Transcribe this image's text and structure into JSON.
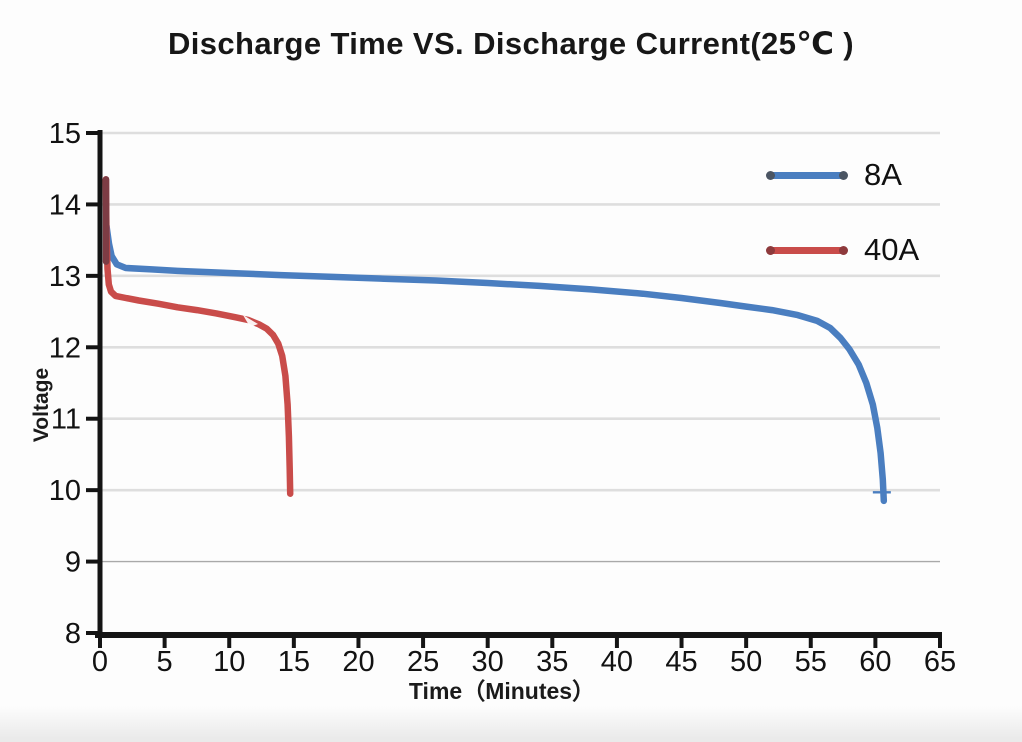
{
  "title": "Discharge Time VS. Discharge Current(25℃ )",
  "axes": {
    "x_label": "Time（Minutes）",
    "y_label": "Voltage"
  },
  "legend": {
    "items": [
      {
        "label": "8A",
        "color": "#4a7ec0",
        "cap_color": "#4b5563"
      },
      {
        "label": "40A",
        "color": "#c94c4a",
        "cap_color": "#8e3a3c"
      }
    ]
  },
  "colors": {
    "axis": "#141414",
    "grid_major": "#dedede",
    "grid_minor": "#a9a9a9",
    "tick_text": "#121212",
    "spike_overlay": "#7d3c44",
    "series_8a": "#4a7ec0",
    "series_40a": "#c94c4a"
  },
  "chart_data": {
    "type": "line",
    "title": "Discharge Time VS. Discharge Current(25℃ )",
    "xlabel": "Time（Minutes）",
    "ylabel": "Voltage",
    "xlim": [
      0,
      65
    ],
    "ylim": [
      8,
      15
    ],
    "x_ticks": [
      0,
      5,
      10,
      15,
      20,
      25,
      30,
      35,
      40,
      45,
      50,
      55,
      60,
      65
    ],
    "y_ticks": [
      8,
      9,
      10,
      11,
      12,
      13,
      14,
      15
    ],
    "grid_y_major": [
      10,
      11,
      12,
      13,
      14,
      15
    ],
    "grid_y_minor": [
      9
    ],
    "grid_x": false,
    "legend_position": "top-right",
    "series": [
      {
        "name": "8A",
        "color": "#4a7ec0",
        "points": [
          [
            0.5,
            13.7
          ],
          [
            0.7,
            13.45
          ],
          [
            0.9,
            13.28
          ],
          [
            1.3,
            13.16
          ],
          [
            2,
            13.11
          ],
          [
            4,
            13.09
          ],
          [
            6,
            13.07
          ],
          [
            10,
            13.04
          ],
          [
            14,
            13.01
          ],
          [
            18,
            12.985
          ],
          [
            22,
            12.96
          ],
          [
            26,
            12.935
          ],
          [
            30,
            12.9
          ],
          [
            34,
            12.86
          ],
          [
            38,
            12.81
          ],
          [
            42,
            12.75
          ],
          [
            45,
            12.69
          ],
          [
            48,
            12.62
          ],
          [
            50,
            12.57
          ],
          [
            52,
            12.52
          ],
          [
            54,
            12.45
          ],
          [
            55.5,
            12.37
          ],
          [
            56.5,
            12.27
          ],
          [
            57.3,
            12.13
          ],
          [
            58,
            11.97
          ],
          [
            58.7,
            11.76
          ],
          [
            59.3,
            11.5
          ],
          [
            59.8,
            11.2
          ],
          [
            60.15,
            10.87
          ],
          [
            60.4,
            10.52
          ],
          [
            60.57,
            10.15
          ],
          [
            60.65,
            9.85
          ]
        ],
        "end_marker": {
          "x": 60.5,
          "y": 9.97
        }
      },
      {
        "name": "40A",
        "color": "#c94c4a",
        "points": [
          [
            0.45,
            14.35
          ],
          [
            0.5,
            13.6
          ],
          [
            0.58,
            13.1
          ],
          [
            0.68,
            12.88
          ],
          [
            0.85,
            12.78
          ],
          [
            1.2,
            12.72
          ],
          [
            2,
            12.69
          ],
          [
            3,
            12.655
          ],
          [
            4.5,
            12.61
          ],
          [
            6,
            12.56
          ],
          [
            7.5,
            12.52
          ],
          [
            9,
            12.475
          ],
          [
            10.5,
            12.42
          ],
          [
            11.5,
            12.38
          ],
          [
            12.3,
            12.32
          ],
          [
            12.9,
            12.26
          ],
          [
            13.4,
            12.17
          ],
          [
            13.8,
            12.05
          ],
          [
            14.1,
            11.88
          ],
          [
            14.35,
            11.6
          ],
          [
            14.52,
            11.2
          ],
          [
            14.62,
            10.75
          ],
          [
            14.68,
            10.3
          ],
          [
            14.72,
            9.95
          ]
        ],
        "spike_overlay": {
          "x": 0.47,
          "y1": 14.35,
          "y2": 13.2
        }
      }
    ]
  }
}
